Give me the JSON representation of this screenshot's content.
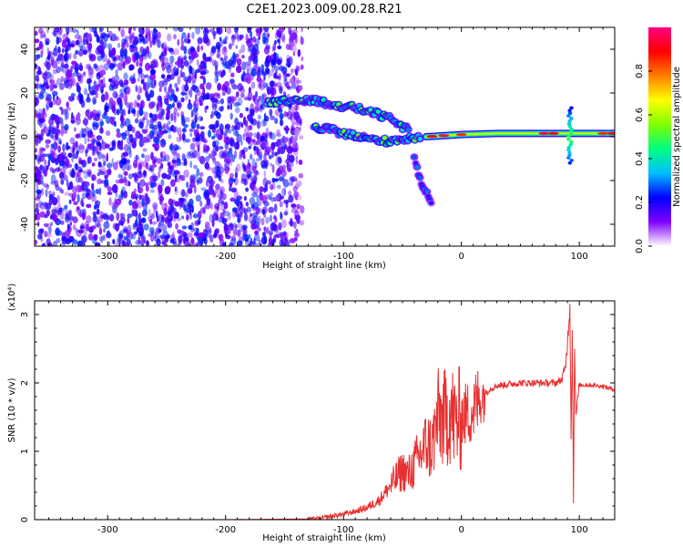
{
  "figure_title": "C2E1.2023.009.00.28.R21",
  "chart_data": [
    {
      "type": "heatmap",
      "xlabel": "Height of straight line (km)",
      "ylabel": "Frequency (Hz)",
      "xlim": [
        -362,
        130
      ],
      "ylim": [
        -50,
        50
      ],
      "x_ticks": [
        -300,
        -200,
        -100,
        0,
        100
      ],
      "y_ticks": [
        -40,
        -20,
        0,
        20,
        40
      ],
      "colorbar": {
        "label": "Normalized spectral amplitude",
        "range": [
          0,
          1
        ],
        "ticks": [
          "0.0",
          "0.2",
          "0.4",
          "0.6",
          "0.8"
        ],
        "colors": [
          "#ffffff",
          "#7f00ff",
          "#0000ff",
          "#00bfff",
          "#00ff7f",
          "#7fff00",
          "#ffff00",
          "#ff7f00",
          "#ff0000",
          "#ff007f"
        ]
      },
      "features": {
        "noise_region_x": [
          -362,
          -135
        ],
        "upper_branch": [
          [
            -165,
            15
          ],
          [
            -140,
            17
          ],
          [
            -120,
            16
          ],
          [
            -100,
            14
          ],
          [
            -80,
            12
          ],
          [
            -60,
            8
          ],
          [
            -45,
            3
          ]
        ],
        "lower_branch": [
          [
            -125,
            4
          ],
          [
            -110,
            3
          ],
          [
            -95,
            1
          ],
          [
            -80,
            -1
          ],
          [
            -65,
            -2
          ],
          [
            -50,
            -1
          ],
          [
            -35,
            0
          ]
        ],
        "carrier_line": [
          [
            -30,
            0
          ],
          [
            0,
            1
          ],
          [
            30,
            1.5
          ],
          [
            60,
            1.5
          ],
          [
            90,
            1.5
          ],
          [
            130,
            1.5
          ]
        ],
        "branch_tail": [
          [
            -40,
            -10
          ],
          [
            -35,
            -20
          ],
          [
            -25,
            -30
          ]
        ],
        "spike_at": 92
      }
    },
    {
      "type": "line",
      "xlabel": "Height of straight line (km)",
      "ylabel": "SNR (10 * v/v)",
      "y_multiplier": "(x10⁴)",
      "xlim": [
        -362,
        130
      ],
      "ylim": [
        0,
        3.2
      ],
      "x_ticks": [
        -300,
        -200,
        -100,
        0,
        100
      ],
      "y_ticks": [
        0,
        1,
        2,
        3
      ],
      "line_color": "#e83030",
      "series": [
        {
          "points": [
            [
              -362,
              0.0
            ],
            [
              -200,
              0.0
            ],
            [
              -130,
              0.01
            ],
            [
              -120,
              0.02
            ],
            [
              -110,
              0.05
            ],
            [
              -100,
              0.08
            ],
            [
              -90,
              0.12
            ],
            [
              -80,
              0.18
            ],
            [
              -70,
              0.28
            ],
            [
              -60,
              0.5
            ],
            [
              -50,
              0.72
            ],
            [
              -45,
              0.65
            ],
            [
              -40,
              0.8
            ],
            [
              -35,
              0.95
            ],
            [
              -30,
              1.1
            ],
            [
              -25,
              1.05
            ],
            [
              -20,
              1.5
            ],
            [
              -15,
              1.45
            ],
            [
              -10,
              1.6
            ],
            [
              -5,
              1.4
            ],
            [
              0,
              1.5
            ],
            [
              5,
              1.55
            ],
            [
              10,
              1.6
            ],
            [
              15,
              1.75
            ],
            [
              20,
              1.85
            ],
            [
              25,
              1.92
            ],
            [
              30,
              1.96
            ],
            [
              40,
              1.98
            ],
            [
              50,
              2.0
            ],
            [
              60,
              2.0
            ],
            [
              70,
              2.0
            ],
            [
              80,
              2.0
            ],
            [
              85,
              2.05
            ],
            [
              88,
              2.2
            ],
            [
              90,
              2.6
            ],
            [
              92,
              3.15
            ],
            [
              93,
              1.2
            ],
            [
              94,
              2.8
            ],
            [
              95,
              0.25
            ],
            [
              96,
              2.6
            ],
            [
              97,
              1.5
            ],
            [
              100,
              1.97
            ],
            [
              110,
              1.97
            ],
            [
              120,
              1.95
            ],
            [
              130,
              1.9
            ]
          ]
        }
      ]
    }
  ]
}
